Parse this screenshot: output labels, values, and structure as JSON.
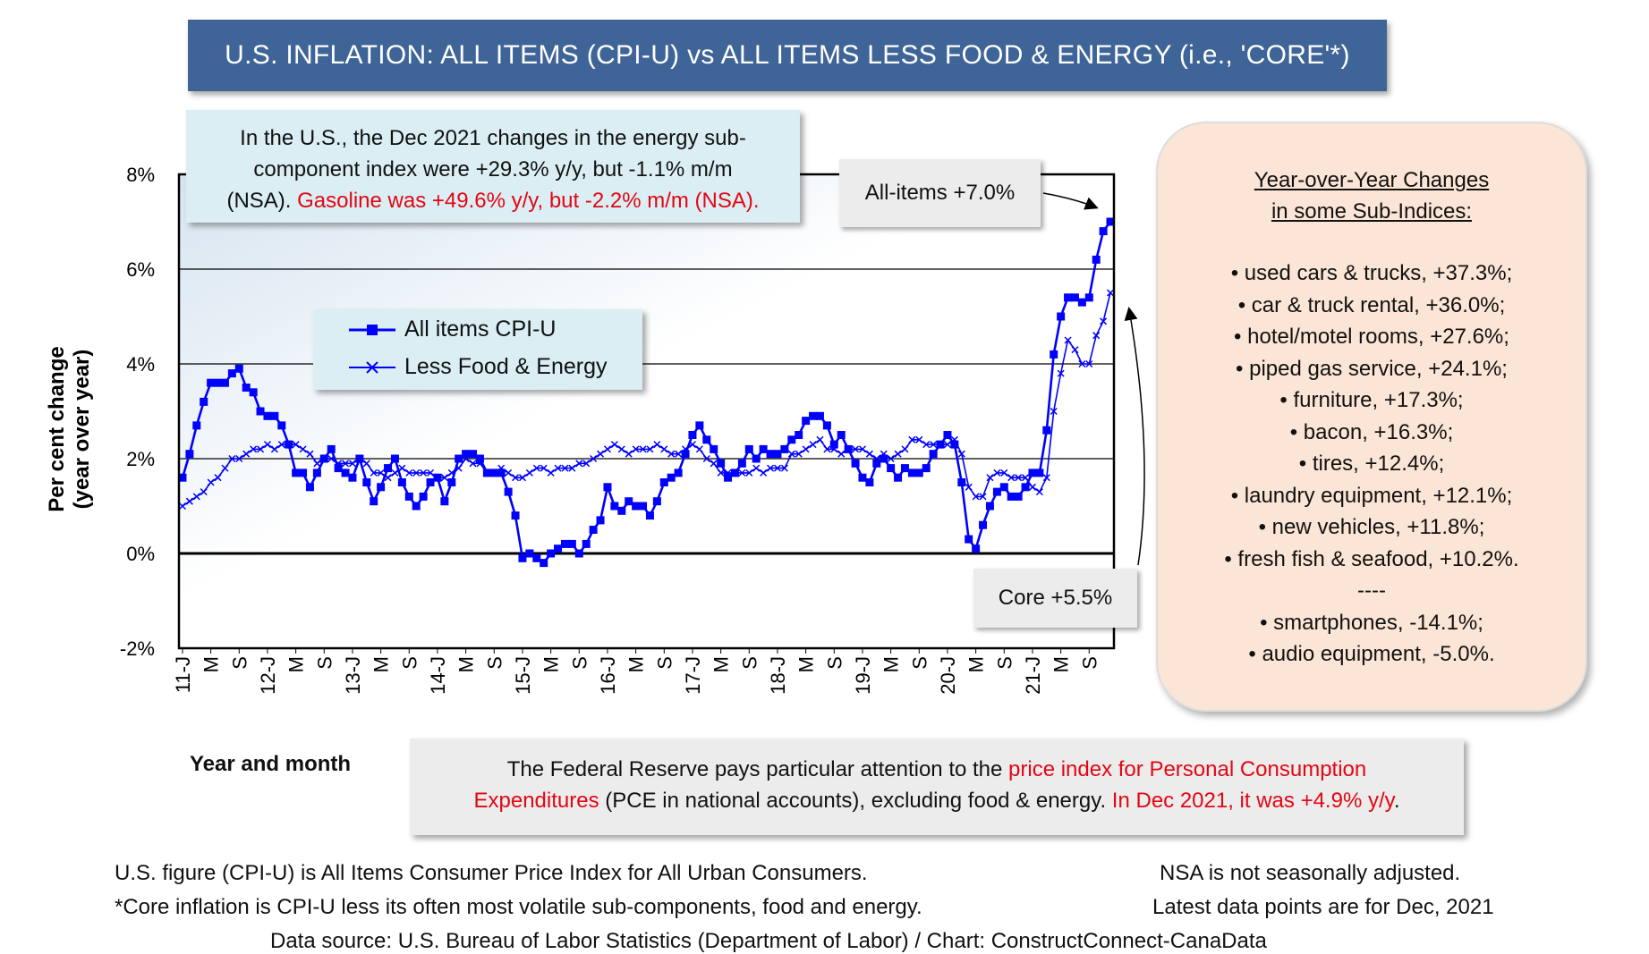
{
  "title": "U.S. INFLATION: ALL ITEMS (CPI-U) vs ALL ITEMS LESS FOOD & ENERGY (i.e., 'CORE'*)",
  "energy_note": {
    "line1": "In the U.S., the Dec 2021 changes in the energy sub-",
    "line2": "component index were +29.3% y/y, but -1.1% m/m",
    "line3_black": "(NSA). ",
    "line3_red": "Gasoline was +49.6% y/y, but -2.2% m/m (NSA)."
  },
  "legend": {
    "all_items": "All items CPI-U",
    "core": "Less Food & Energy"
  },
  "callouts": {
    "all_items": "All-items +7.0%",
    "core": "Core +5.5%"
  },
  "sub_indices": {
    "heading_line1": "Year-over-Year Changes",
    "heading_line2": "in some Sub-Indices:",
    "items": [
      "• used cars & trucks, +37.3%;",
      "• car & truck rental, +36.0%;",
      "• hotel/motel rooms, +27.6%;",
      "• piped gas service, +24.1%;",
      "• furniture, +17.3%;",
      "• bacon, +16.3%;",
      "• tires, +12.4%;",
      "• laundry equipment, +12.1%;",
      "• new vehicles, +11.8%;",
      "• fresh fish & seafood, +10.2%.",
      "----",
      "• smartphones, -14.1%;",
      "• audio equipment, -5.0%."
    ]
  },
  "fed_note": {
    "l1_black": "The Federal Reserve pays particular attention to the ",
    "l1_red": "price index for Personal Consumption",
    "l2_red": "Expenditures",
    "l2_black": " (PCE in national accounts), excluding food & energy. ",
    "l2_red2": "In Dec 2021, it was +4.9% y/y",
    "l2_end": "."
  },
  "footnotes": {
    "f1": "U.S. figure (CPI-U) is All Items Consumer Price Index for All Urban Consumers.",
    "f2": "NSA is not seasonally adjusted.",
    "f3": "*Core inflation is CPI-U less its often most volatile sub-components, food and energy.",
    "f4": "Latest data points are for Dec, 2021",
    "f5": "Data source: U.S. Bureau of Labor Statistics (Department of Labor) / Chart: ConstructConnect-CanaData"
  },
  "colors": {
    "series": "#0000ff",
    "title_bg": "#3f6497",
    "highlight": "#e30613"
  },
  "chart_data": {
    "type": "line",
    "title": "U.S. INFLATION: ALL ITEMS (CPI-U) vs ALL ITEMS LESS FOOD & ENERGY (i.e., 'CORE'*)",
    "xlabel": "Year and month",
    "ylabel": "Per cent change (year over year)",
    "ylim": [
      -2,
      8
    ],
    "yticks": [
      "8%",
      "6%",
      "4%",
      "2%",
      "0%",
      "-2%"
    ],
    "xtick_labels": [
      "11-J",
      "M",
      "S",
      "12-J",
      "M",
      "S",
      "13-J",
      "M",
      "S",
      "14-J",
      "M",
      "S",
      "15-J",
      "M",
      "S",
      "16-J",
      "M",
      "S",
      "17-J",
      "M",
      "S",
      "18-J",
      "M",
      "S",
      "19-J",
      "M",
      "S",
      "20-J",
      "M",
      "S",
      "21-J",
      "M",
      "S"
    ],
    "x_start": "2011-01",
    "x_end": "2021-12",
    "grid": "horizontal",
    "series": [
      {
        "name": "All items CPI-U",
        "marker": "square",
        "values": [
          1.6,
          2.1,
          2.7,
          3.2,
          3.6,
          3.6,
          3.6,
          3.8,
          3.9,
          3.5,
          3.4,
          3.0,
          2.9,
          2.9,
          2.7,
          2.3,
          1.7,
          1.7,
          1.4,
          1.7,
          2.0,
          2.2,
          1.8,
          1.7,
          1.6,
          2.0,
          1.5,
          1.1,
          1.4,
          1.8,
          2.0,
          1.5,
          1.2,
          1.0,
          1.2,
          1.5,
          1.6,
          1.1,
          1.5,
          2.0,
          2.1,
          2.1,
          2.0,
          1.7,
          1.7,
          1.7,
          1.3,
          0.8,
          -0.1,
          0.0,
          -0.1,
          -0.2,
          0.0,
          0.1,
          0.2,
          0.2,
          0.0,
          0.2,
          0.5,
          0.7,
          1.4,
          1.0,
          0.9,
          1.1,
          1.0,
          1.0,
          0.8,
          1.1,
          1.5,
          1.6,
          1.7,
          2.1,
          2.5,
          2.7,
          2.4,
          2.2,
          1.9,
          1.6,
          1.7,
          1.9,
          2.2,
          2.0,
          2.2,
          2.1,
          2.1,
          2.2,
          2.4,
          2.5,
          2.8,
          2.9,
          2.9,
          2.7,
          2.3,
          2.5,
          2.2,
          1.9,
          1.6,
          1.5,
          1.9,
          2.0,
          1.8,
          1.6,
          1.8,
          1.7,
          1.7,
          1.8,
          2.1,
          2.3,
          2.5,
          2.3,
          1.5,
          0.3,
          0.1,
          0.6,
          1.0,
          1.3,
          1.4,
          1.2,
          1.2,
          1.4,
          1.7,
          1.7,
          2.6,
          4.2,
          5.0,
          5.4,
          5.4,
          5.3,
          5.4,
          6.2,
          6.8,
          7.0
        ]
      },
      {
        "name": "Less Food & Energy",
        "marker": "x",
        "values": [
          1.0,
          1.1,
          1.2,
          1.3,
          1.5,
          1.6,
          1.8,
          2.0,
          2.0,
          2.1,
          2.2,
          2.2,
          2.3,
          2.2,
          2.3,
          2.3,
          2.3,
          2.2,
          2.1,
          1.9,
          2.0,
          2.0,
          1.9,
          1.9,
          1.9,
          2.0,
          1.9,
          1.7,
          1.7,
          1.6,
          1.7,
          1.8,
          1.7,
          1.7,
          1.7,
          1.7,
          1.6,
          1.6,
          1.7,
          1.8,
          2.0,
          1.9,
          1.9,
          1.7,
          1.7,
          1.8,
          1.7,
          1.6,
          1.6,
          1.7,
          1.8,
          1.8,
          1.7,
          1.8,
          1.8,
          1.8,
          1.9,
          1.9,
          2.0,
          2.1,
          2.2,
          2.3,
          2.2,
          2.1,
          2.2,
          2.2,
          2.2,
          2.3,
          2.2,
          2.1,
          2.1,
          2.2,
          2.3,
          2.2,
          2.0,
          1.9,
          1.7,
          1.7,
          1.7,
          1.7,
          1.7,
          1.8,
          1.7,
          1.8,
          1.8,
          1.8,
          2.1,
          2.1,
          2.2,
          2.3,
          2.4,
          2.2,
          2.2,
          2.1,
          2.2,
          2.2,
          2.2,
          2.1,
          2.0,
          2.1,
          2.0,
          2.1,
          2.2,
          2.4,
          2.4,
          2.3,
          2.3,
          2.3,
          2.3,
          2.4,
          2.1,
          1.4,
          1.2,
          1.2,
          1.6,
          1.7,
          1.7,
          1.6,
          1.6,
          1.6,
          1.4,
          1.3,
          1.6,
          3.0,
          3.8,
          4.5,
          4.3,
          4.0,
          4.0,
          4.6,
          4.9,
          5.5
        ]
      }
    ]
  }
}
